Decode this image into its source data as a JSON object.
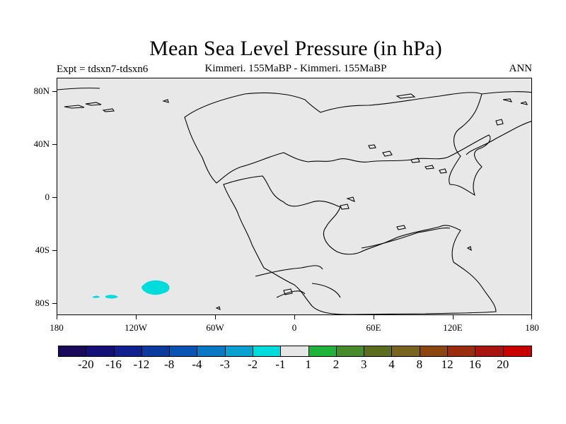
{
  "title": "Mean Sea Level Pressure (in hPa)",
  "subtitle_left": "Expt = tdsxn7-tdsxn6",
  "subtitle_center": "Kimmeri. 155MaBP - Kimmeri. 155MaBP",
  "subtitle_right": "ANN",
  "lat_labels": [
    "80N",
    "40N",
    "0",
    "40S",
    "80S"
  ],
  "lon_labels": [
    "180",
    "120W",
    "60W",
    "0",
    "60E",
    "120E",
    "180"
  ],
  "colorbar": {
    "colors": [
      "#1a0a5a",
      "#150f78",
      "#10208c",
      "#0a3ca0",
      "#0a55b4",
      "#0a78c3",
      "#0aa0d2",
      "#00dcdc",
      "#e6e6e6",
      "#1eb43c",
      "#468c2d",
      "#5a6e1e",
      "#78641e",
      "#8c460f",
      "#9b2d0f",
      "#aa140f",
      "#c80000"
    ],
    "labels": [
      "-20",
      "-16",
      "-12",
      "-8",
      "-4",
      "-3",
      "-2",
      "-1",
      "1",
      "2",
      "3",
      "4",
      "8",
      "12",
      "16",
      "20"
    ]
  },
  "colors": {
    "map_background": "#e8e8e8",
    "anomaly_fill": "#00dcdc",
    "coastline": "#000000"
  }
}
